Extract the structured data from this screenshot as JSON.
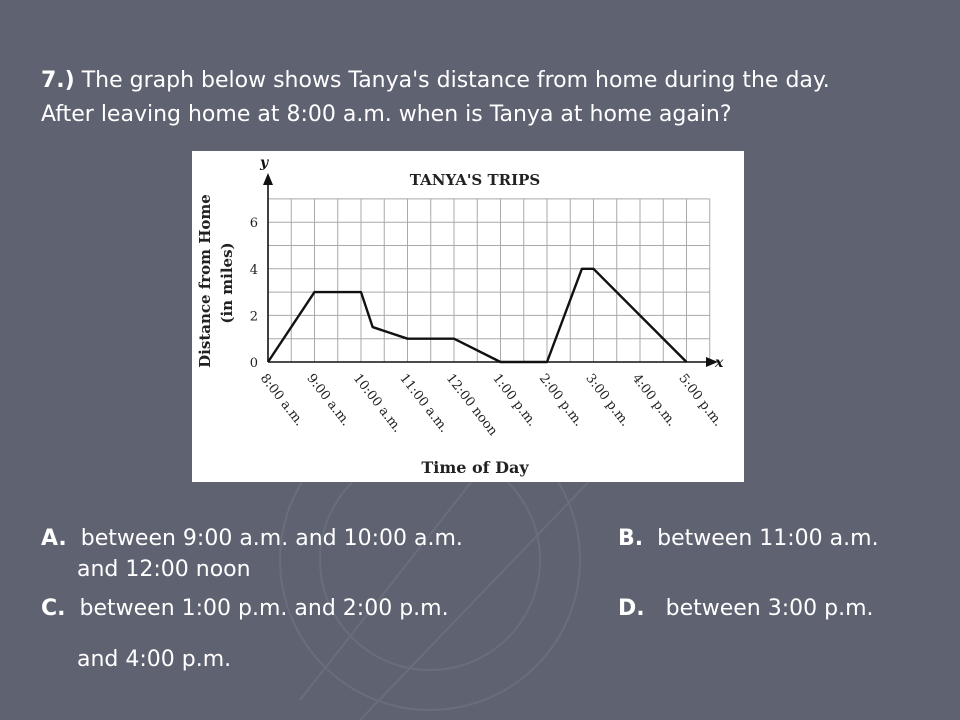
{
  "question": {
    "number": "7.)",
    "line1": " The graph below shows Tanya's distance from home during the day.",
    "line2": "After leaving home at 8:00 a.m. when is Tanya at home again?"
  },
  "answers": {
    "a_letter": "A.",
    "a_text": "between 9:00 a.m. and 10:00 a.m.",
    "b_letter": "B.",
    "b_text": "between 11:00 a.m.",
    "b_text2": "and 12:00 noon",
    "c_letter": "C.",
    "c_text": "between 1:00 p.m. and 2:00 p.m.",
    "d_letter": "D.",
    "d_text": "between 3:00 p.m.",
    "d_text2": "and 4:00 p.m."
  },
  "chart_data": {
    "type": "line",
    "title": "TANYA'S TRIPS",
    "xlabel": "Time of Day",
    "ylabel": "Distance from Home",
    "ylabel2": "(in miles)",
    "x_axis_letter": "x",
    "y_axis_letter": "y",
    "x_tick_labels": [
      "8:00 a.m.",
      "9:00 a.m.",
      "10:00 a.m.",
      "11:00 a.m.",
      "12:00 noon",
      "1:00 p.m.",
      "2:00 p.m.",
      "3:00 p.m.",
      "4:00 p.m.",
      "5:00 p.m."
    ],
    "y_ticks": [
      "0",
      "2",
      "4",
      "6"
    ],
    "xlim": [
      8,
      17.5
    ],
    "ylim": [
      0,
      7
    ],
    "grid": true,
    "series": [
      {
        "x": [
          8,
          9,
          10,
          10.25,
          11,
          12,
          13,
          14,
          14.75,
          15,
          17
        ],
        "y": [
          0,
          3,
          3,
          1.5,
          1,
          1,
          0,
          0,
          4,
          4,
          0
        ]
      }
    ]
  }
}
